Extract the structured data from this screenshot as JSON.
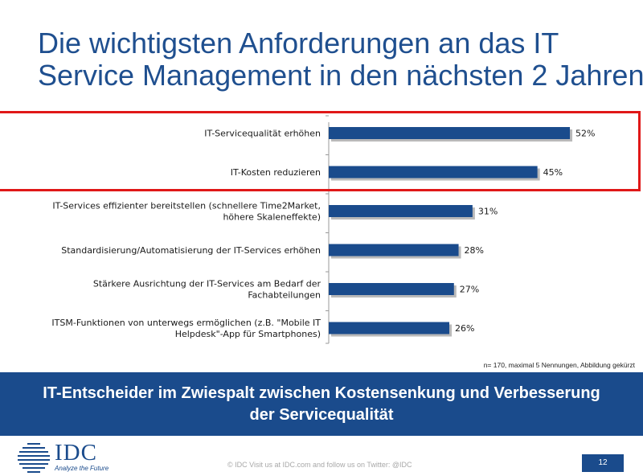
{
  "slide": {
    "title_line1": "Die wichtigsten Anforderungen an das IT",
    "title_line2": "Service Management in den nächsten 2 Jahren",
    "note": "n= 170, maximal 5 Nennungen, Abbildung gekürzt",
    "banner_line1": "IT-Entscheider im Zwiespalt zwischen Kostensenkung und Verbesserung",
    "banner_line2": "der Servicequalität",
    "footer": "© IDC   Visit us at IDC.com and follow us on Twitter: @IDC",
    "page_number": "12",
    "logo_text": "IDC",
    "logo_tagline": "Analyze the Future"
  },
  "colors": {
    "bar": "#1a4b8c",
    "title": "#1f4f8f",
    "highlight": "#e01818",
    "banner": "#1a4b8c"
  },
  "chart_data": {
    "type": "bar",
    "orientation": "horizontal",
    "title": "",
    "xlabel": "",
    "ylabel": "",
    "xlim": [
      0,
      60
    ],
    "categories": [
      [
        "IT-Servicequalität erhöhen"
      ],
      [
        "IT-Kosten reduzieren"
      ],
      [
        "IT-Services effizienter bereitstellen (schnellere Time2Market,",
        "höhere Skaleneffekte)"
      ],
      [
        "Standardisierung/Automatisierung der IT-Services erhöhen"
      ],
      [
        "Stärkere Ausrichtung der IT-Services am Bedarf der",
        "Fachabteilungen"
      ],
      [
        "ITSM-Funktionen von unterwegs ermöglichen (z.B. \"Mobile IT",
        "Helpdesk\"-App für Smartphones)"
      ]
    ],
    "values": [
      52,
      45,
      31,
      28,
      27,
      26
    ],
    "value_labels": [
      "52%",
      "45%",
      "31%",
      "28%",
      "27%",
      "26%"
    ],
    "highlighted": [
      0,
      1
    ]
  }
}
